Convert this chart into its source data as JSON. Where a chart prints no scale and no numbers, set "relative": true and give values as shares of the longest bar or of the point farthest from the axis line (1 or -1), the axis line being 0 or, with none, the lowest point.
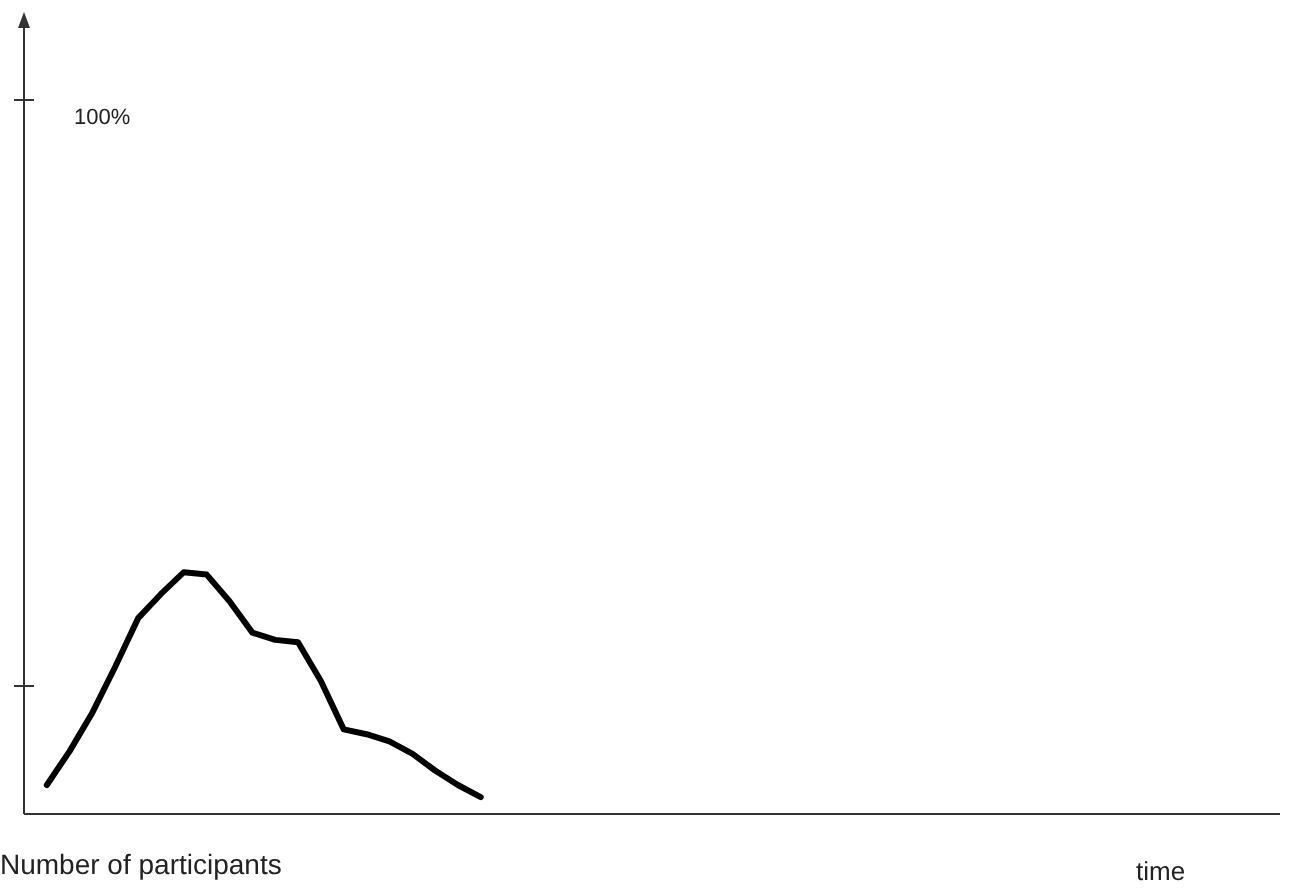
{
  "chart_data": {
    "type": "line",
    "relative": true,
    "xlabel": "time",
    "annotations": [
      "Number of participants",
      "100%"
    ],
    "marker": "none",
    "line_style": "solid",
    "grid": false,
    "legend": false,
    "categories": [
      null,
      null,
      null,
      null,
      null,
      null,
      null,
      null,
      null,
      null,
      null,
      null,
      null,
      null,
      null,
      null,
      null,
      null,
      null,
      null,
      null,
      null,
      null,
      null,
      null,
      null,
      null,
      null,
      null,
      null,
      null,
      null,
      null,
      null,
      null,
      null,
      null,
      null,
      null,
      null,
      null,
      null,
      null,
      null,
      null,
      null,
      null,
      null,
      null,
      null,
      null,
      null,
      null,
      null,
      null
    ],
    "series": [
      {
        "color": "#000000",
        "values": [
          0.12,
          0.26,
          0.42,
          0.61,
          0.81,
          0.91,
          1,
          0.99,
          0.88,
          0.75,
          0.72,
          0.71,
          0.55,
          0.35,
          0.33,
          0.3,
          0.25,
          0.18,
          0.12,
          0.07,
          null,
          null,
          null,
          null,
          null,
          null,
          null,
          null,
          null,
          null,
          null,
          null,
          null,
          null,
          null,
          null,
          null,
          null,
          null,
          null,
          null,
          null,
          null,
          null,
          null,
          null,
          null,
          null,
          null,
          null,
          null,
          null,
          null,
          null,
          null
        ]
      }
    ]
  }
}
